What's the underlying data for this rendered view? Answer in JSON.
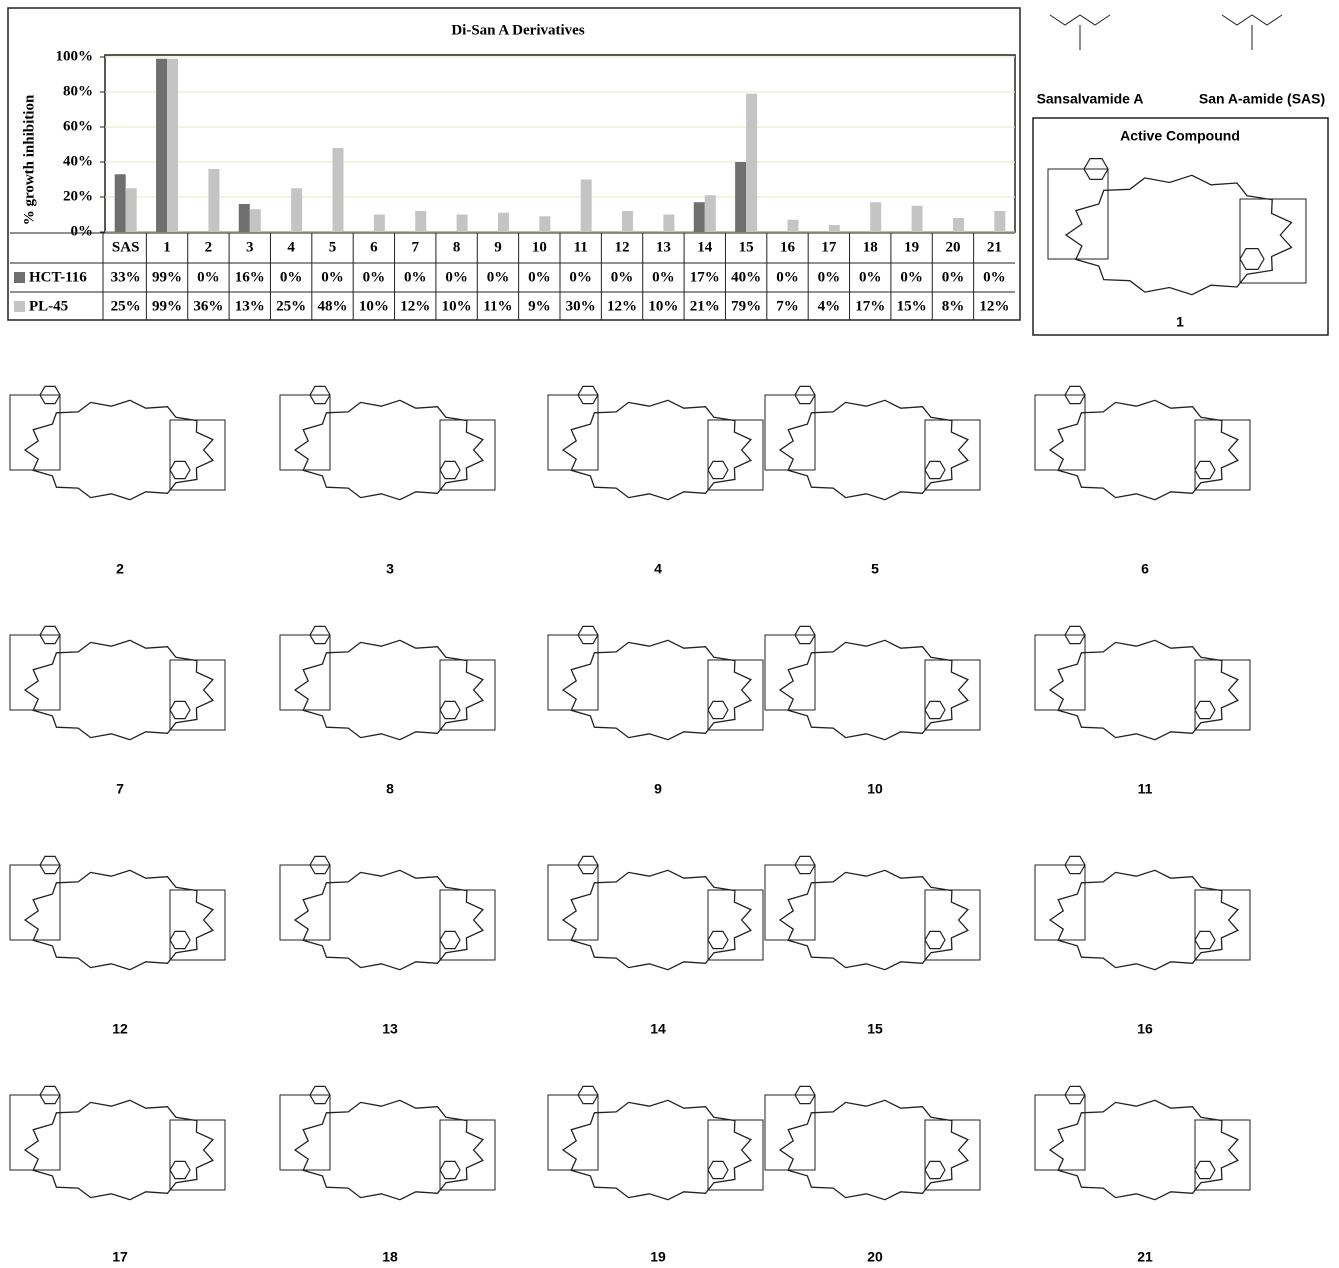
{
  "chart_data": {
    "type": "bar",
    "title": "Di-San A Derivatives",
    "y_label": "% growth inhibition",
    "categories": [
      "SAS",
      "1",
      "2",
      "3",
      "4",
      "5",
      "6",
      "7",
      "8",
      "9",
      "10",
      "11",
      "12",
      "13",
      "14",
      "15",
      "16",
      "17",
      "18",
      "19",
      "20",
      "21"
    ],
    "series": [
      {
        "name": "HCT-116",
        "color": "#6f6f6f",
        "values": [
          33,
          99,
          0,
          16,
          0,
          0,
          0,
          0,
          0,
          0,
          0,
          0,
          0,
          0,
          17,
          40,
          0,
          0,
          0,
          0,
          0,
          0
        ],
        "value_labels": [
          "33%",
          "99%",
          "0%",
          "16%",
          "0%",
          "0%",
          "0%",
          "0%",
          "0%",
          "0%",
          "0%",
          "0%",
          "0%",
          "0%",
          "17%",
          "40%",
          "0%",
          "0%",
          "0%",
          "0%",
          "0%",
          "0%"
        ]
      },
      {
        "name": "PL-45",
        "color": "#c4c4c4",
        "values": [
          25,
          99,
          36,
          13,
          25,
          48,
          10,
          12,
          10,
          11,
          9,
          30,
          12,
          10,
          21,
          79,
          7,
          4,
          17,
          15,
          8,
          12
        ],
        "value_labels": [
          "25%",
          "99%",
          "36%",
          "13%",
          "25%",
          "48%",
          "10%",
          "12%",
          "10%",
          "11%",
          "9%",
          "30%",
          "12%",
          "10%",
          "21%",
          "79%",
          "7%",
          "4%",
          "17%",
          "15%",
          "8%",
          "12%"
        ]
      }
    ],
    "ylim": [
      0,
      100
    ],
    "yticks": [
      {
        "value": 0,
        "label": "0%"
      },
      {
        "value": 20,
        "label": "20%"
      },
      {
        "value": 40,
        "label": "40%"
      },
      {
        "value": 60,
        "label": "60%"
      },
      {
        "value": 80,
        "label": "80%"
      },
      {
        "value": 100,
        "label": "100%"
      }
    ],
    "grid": true
  },
  "figure": {
    "reference_compounds": [
      "Sansalvamide A",
      "San A-amide (SAS)"
    ],
    "active_compound": {
      "title": "Active  Compound",
      "label": "1"
    },
    "compounds": [
      "2",
      "3",
      "4",
      "5",
      "6",
      "7",
      "8",
      "9",
      "10",
      "11",
      "12",
      "13",
      "14",
      "15",
      "16",
      "17",
      "18",
      "19",
      "20",
      "21"
    ]
  }
}
